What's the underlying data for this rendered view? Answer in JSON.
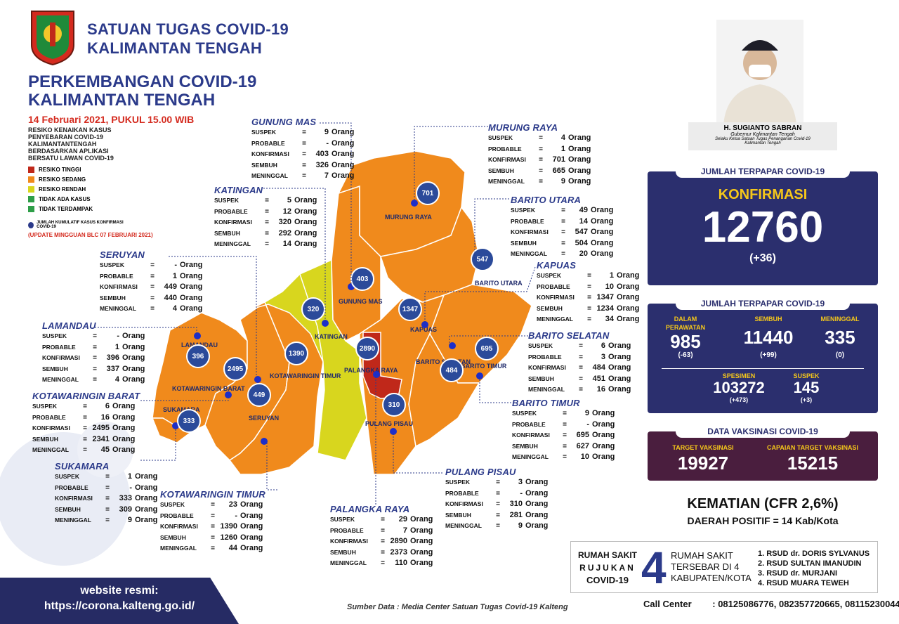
{
  "header": {
    "org_line1": "SATUAN TUGAS COVID-19",
    "org_line2": "KALIMANTAN TENGAH",
    "title_line1": "PERKEMBANGAN COVID-19",
    "title_line2": "KALIMANTAN TENGAH",
    "date": "14 Februari 2021, PUKUL 15.00 WIB"
  },
  "legend": {
    "description": "RESIKO KENAIKAN KASUS PENYEBARAN COVID-19 KALIMANTANTENGAH BERDASARKAN APLIKASI BERSATU LAWAN COVID-19",
    "items": [
      {
        "label": "RESIKO TINGGI",
        "color": "#c0281a"
      },
      {
        "label": "RESIKO SEDANG",
        "color": "#f08a1c"
      },
      {
        "label": "RESIKO RENDAH",
        "color": "#d8d61e"
      },
      {
        "label": "TIDAK ADA KASUS",
        "color": "#2e9e48"
      },
      {
        "label": "TIDAK TERDAMPAK",
        "color": "#2e9e48"
      }
    ],
    "bubble_note": "JUMLAH KUMULATIF KASUS KONFIRMASI COVID-19",
    "update_note": "(UPDATE MINGGUAN BLC 07 FEBRUARI 2021)"
  },
  "stat_labels": {
    "suspek": "SUSPEK",
    "probable": "PROBABLE",
    "konfirmasi": "KONFIRMASI",
    "sembuh": "SEMBUH",
    "meninggal": "MENINGGAL",
    "eq": "=",
    "unit": "Orang"
  },
  "regions": [
    {
      "name": "GUNUNG MAS",
      "suspek": "9",
      "probable": "-",
      "konfirmasi": "403",
      "sembuh": "326",
      "meninggal": "7"
    },
    {
      "name": "MURUNG RAYA",
      "suspek": "4",
      "probable": "1",
      "konfirmasi": "701",
      "sembuh": "665",
      "meninggal": "9"
    },
    {
      "name": "KATINGAN",
      "suspek": "5",
      "probable": "12",
      "konfirmasi": "320",
      "sembuh": "292",
      "meninggal": "14"
    },
    {
      "name": "BARITO UTARA",
      "suspek": "49",
      "probable": "14",
      "konfirmasi": "547",
      "sembuh": "504",
      "meninggal": "20"
    },
    {
      "name": "SERUYAN",
      "suspek": "-",
      "probable": "1",
      "konfirmasi": "449",
      "sembuh": "440",
      "meninggal": "4"
    },
    {
      "name": "KAPUAS",
      "suspek": "1",
      "probable": "10",
      "konfirmasi": "1347",
      "sembuh": "1234",
      "meninggal": "34"
    },
    {
      "name": "LAMANDAU",
      "suspek": "-",
      "probable": "1",
      "konfirmasi": "396",
      "sembuh": "337",
      "meninggal": "4"
    },
    {
      "name": "BARITO SELATAN",
      "suspek": "6",
      "probable": "3",
      "konfirmasi": "484",
      "sembuh": "451",
      "meninggal": "16"
    },
    {
      "name": "KOTAWARINGIN BARAT",
      "suspek": "6",
      "probable": "16",
      "konfirmasi": "2495",
      "sembuh": "2341",
      "meninggal": "45"
    },
    {
      "name": "BARITO TIMUR",
      "suspek": "9",
      "probable": "-",
      "konfirmasi": "695",
      "sembuh": "627",
      "meninggal": "10"
    },
    {
      "name": "SUKAMARA",
      "suspek": "1",
      "probable": "-",
      "konfirmasi": "333",
      "sembuh": "309",
      "meninggal": "9"
    },
    {
      "name": "PULANG PISAU",
      "suspek": "3",
      "probable": "-",
      "konfirmasi": "310",
      "sembuh": "281",
      "meninggal": "9"
    },
    {
      "name": "KOTAWARINGIN TIMUR",
      "suspek": "23",
      "probable": "-",
      "konfirmasi": "1390",
      "sembuh": "1260",
      "meninggal": "44"
    },
    {
      "name": "PALANGKA RAYA",
      "suspek": "29",
      "probable": "7",
      "konfirmasi": "2890",
      "sembuh": "2373",
      "meninggal": "110"
    }
  ],
  "map": {
    "labels": [
      "MURUNG RAYA",
      "GUNUNG MAS",
      "BARITO UTARA",
      "KAPUAS",
      "KATINGAN",
      "LAMANDAU",
      "KOTAWARINGIN BARAT",
      "SUKAMARA",
      "KOTAWARINGIN TIMUR",
      "SERUYAN",
      "PALANGKA RAYA",
      "PULANG PISAU",
      "BARITO SELATAN",
      "BARITO TIMUR"
    ],
    "bubbles": [
      "701",
      "403",
      "547",
      "1347",
      "320",
      "2890",
      "310",
      "484",
      "695",
      "396",
      "2495",
      "333",
      "1390",
      "449"
    ]
  },
  "governor": {
    "name": "H. SUGIANTO SABRAN",
    "role1": "Gubernur Kalimantan Tengah",
    "role2": "Selaku Ketua Satuan Tugas Penanganan Covid-19",
    "role3": "Kalimantan Tengah"
  },
  "konfirmasi_card": {
    "header": "JUMLAH TERPAPAR COVID-19",
    "title": "KONFIRMASI",
    "value": "12760",
    "delta": "(+36)"
  },
  "detail_card": {
    "header": "JUMLAH TERPAPAR COVID-19",
    "dalam_label1": "DALAM",
    "dalam_label2": "PERAWATAN",
    "dalam_value": "985",
    "dalam_delta": "(-63)",
    "sembuh_label": "SEMBUH",
    "sembuh_value": "11440",
    "sembuh_delta": "(+99)",
    "meninggal_label": "MENINGGAL",
    "meninggal_value": "335",
    "meninggal_delta": "(0)",
    "spesimen_label": "SPESIMEN",
    "spesimen_value": "103272",
    "spesimen_delta": "(+473)",
    "suspek_label": "SUSPEK",
    "suspek_value": "145",
    "suspek_delta": "(+3)"
  },
  "vaksin_card": {
    "header": "DATA VAKSINASI COVID-19",
    "target_label": "TARGET VAKSINASI",
    "target_value": "19927",
    "capaian_label": "CAPAIAN TARGET VAKSINASI",
    "capaian_value": "15215"
  },
  "kematian": {
    "line1": "KEMATIAN (CFR 2,6%)",
    "line2": "DAERAH POSITIF = 14 Kab/Kota"
  },
  "rumah_sakit": {
    "title1": "RUMAH SAKIT",
    "title2": "RUJUKAN",
    "title3": "COVID-19",
    "big": "4",
    "mid1": "RUMAH SAKIT",
    "mid2": "TERSEBAR DI 4",
    "mid3": "KABUPATEN/KOTA",
    "list": [
      "1. RSUD dr. DORIS SYLVANUS",
      "2. RSUD SULTAN IMANUDIN",
      "3. RSUD dr. MURJANI",
      "4. RSUD MUARA TEWEH"
    ]
  },
  "call_center": {
    "label": "Call Center",
    "numbers": ": 08125086776, 082357720665, 08115230044"
  },
  "website": {
    "label": "website resmi:",
    "url": "https://corona.kalteng.go.id/"
  },
  "source": "Sumber Data : Media Center Satuan Tugas Covid-19 Kalteng"
}
